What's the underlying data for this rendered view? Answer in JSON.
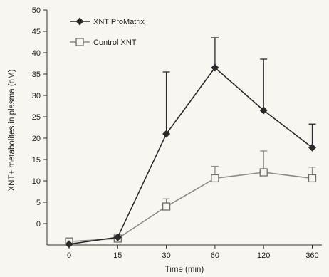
{
  "chart_data": {
    "type": "line",
    "title": "",
    "xlabel": "Time (min)",
    "ylabel": "XNT+ metabolites in plasma (nM)",
    "categories": [
      "0",
      "15",
      "30",
      "60",
      "120",
      "360"
    ],
    "ylim": [
      -5,
      50
    ],
    "yticks": [
      0,
      5,
      10,
      15,
      20,
      25,
      30,
      35,
      40,
      45,
      50
    ],
    "grid": false,
    "legend_position": "top-left",
    "series": [
      {
        "name": "XNT ProMatrix",
        "marker": "filled-diamond",
        "color": "#2a2a2a",
        "values": [
          -4.8,
          -3.2,
          21,
          36.5,
          26.5,
          17.8
        ],
        "error_upper": [
          0,
          0,
          14.5,
          7,
          12,
          5.5
        ]
      },
      {
        "name": "Control XNT",
        "marker": "open-square",
        "color": "#8a8a8a",
        "values": [
          -4.2,
          -3.5,
          4,
          10.6,
          12,
          10.6
        ],
        "error_upper": [
          0,
          0,
          1.8,
          2.8,
          5,
          2.6
        ]
      }
    ]
  }
}
